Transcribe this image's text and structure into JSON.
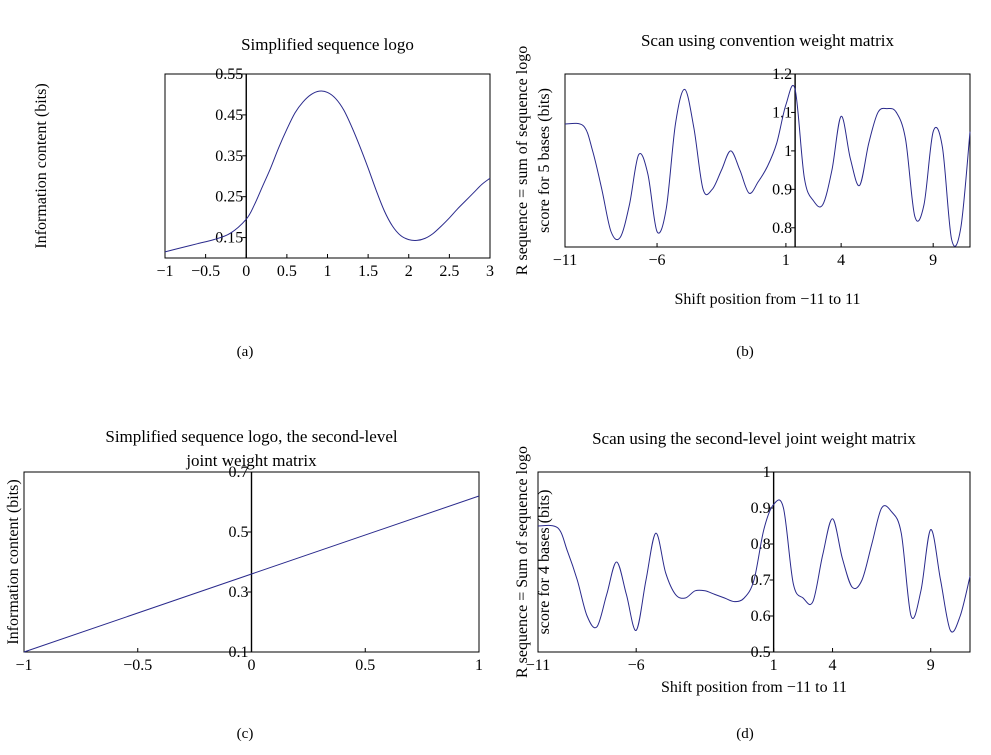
{
  "chart_data": [
    {
      "id": "a",
      "type": "line",
      "panel_label": "(a)",
      "title_lines": [
        "Simplified sequence logo"
      ],
      "xlabel": "",
      "ylabel_lines": [
        "Information content (bits)"
      ],
      "xlim": [
        -1,
        3
      ],
      "ylim": [
        0.1,
        0.55
      ],
      "xticks": [
        -1,
        -0.5,
        0,
        0.5,
        1,
        1.5,
        2,
        2.5,
        3
      ],
      "xtick_labels": [
        "−1",
        "−0.5",
        "0",
        "0.5",
        "1",
        "1.5",
        "2",
        "2.5",
        "3"
      ],
      "yticks": [
        0.15,
        0.25,
        0.35,
        0.45,
        0.55
      ],
      "ytick_labels": [
        "0.15",
        "0.25",
        "0.35",
        "0.45",
        "0.55"
      ],
      "yaxis_at_x": 0,
      "series": [
        {
          "x": [
            -1,
            -0.8,
            -0.6,
            -0.4,
            -0.2,
            0,
            0.1,
            0.2,
            0.3,
            0.4,
            0.5,
            0.6,
            0.7,
            0.8,
            0.9,
            1.0,
            1.1,
            1.2,
            1.3,
            1.4,
            1.5,
            1.6,
            1.7,
            1.8,
            1.9,
            2.0,
            2.1,
            2.2,
            2.3,
            2.4,
            2.5,
            2.6,
            2.7,
            2.8,
            2.9,
            3.0
          ],
          "y": [
            0.115,
            0.125,
            0.135,
            0.145,
            0.16,
            0.195,
            0.23,
            0.275,
            0.32,
            0.37,
            0.415,
            0.455,
            0.482,
            0.5,
            0.508,
            0.505,
            0.49,
            0.462,
            0.42,
            0.372,
            0.32,
            0.265,
            0.215,
            0.178,
            0.155,
            0.145,
            0.143,
            0.148,
            0.16,
            0.178,
            0.198,
            0.22,
            0.24,
            0.26,
            0.28,
            0.295
          ]
        }
      ]
    },
    {
      "id": "b",
      "type": "line",
      "panel_label": "(b)",
      "title_lines": [
        "Scan using convention weight matrix"
      ],
      "xlabel": "Shift position from −11 to 11",
      "ylabel_lines": [
        "R sequence = sum of sequence logo",
        "score for 5 bases (bits)"
      ],
      "xlim": [
        -11,
        11
      ],
      "ylim": [
        0.75,
        1.2
      ],
      "xticks": [
        -11,
        -6,
        1,
        4,
        9
      ],
      "xtick_labels": [
        "−11",
        "−6",
        "1",
        "4",
        "9"
      ],
      "yticks": [
        0.8,
        0.9,
        1.0,
        1.1,
        1.2
      ],
      "ytick_labels": [
        "0.8",
        "0.9",
        "1",
        "1.1",
        "1.2"
      ],
      "yaxis_at_x": 1.5,
      "series": [
        {
          "x": [
            -11,
            -10,
            -9.5,
            -9,
            -8.5,
            -8,
            -7.5,
            -7,
            -6.5,
            -6,
            -5.5,
            -5,
            -4.5,
            -4,
            -3.5,
            -3,
            -2.5,
            -2,
            -1.5,
            -1,
            -0.5,
            0,
            0.5,
            1,
            1.5,
            2,
            2.5,
            3,
            3.5,
            4,
            4.5,
            5,
            5.5,
            6,
            6.5,
            7,
            7.5,
            8,
            8.5,
            9,
            9.5,
            10,
            10.5,
            11
          ],
          "y": [
            1.07,
            1.065,
            1.0,
            0.9,
            0.79,
            0.775,
            0.86,
            0.99,
            0.94,
            0.79,
            0.85,
            1.07,
            1.16,
            1.06,
            0.9,
            0.9,
            0.95,
            1.0,
            0.95,
            0.89,
            0.92,
            0.96,
            1.02,
            1.12,
            1.16,
            0.93,
            0.87,
            0.86,
            0.95,
            1.09,
            0.98,
            0.91,
            1.02,
            1.1,
            1.11,
            1.1,
            1.03,
            0.83,
            0.86,
            1.05,
            1.01,
            0.77,
            0.8,
            1.05
          ]
        }
      ]
    },
    {
      "id": "c",
      "type": "line",
      "panel_label": "(c)",
      "title_lines": [
        "Simplified sequence logo, the second-level",
        "joint weight matrix"
      ],
      "xlabel": "",
      "ylabel_lines": [
        "Information content (bits)"
      ],
      "xlim": [
        -1,
        1
      ],
      "ylim": [
        0.1,
        0.7
      ],
      "xticks": [
        -1,
        -0.5,
        0,
        0.5,
        1
      ],
      "xtick_labels": [
        "−1",
        "−0.5",
        "0",
        "0.5",
        "1"
      ],
      "yticks": [
        0.1,
        0.3,
        0.5,
        0.7
      ],
      "ytick_labels": [
        "0.1",
        "0.3",
        "0.5",
        "0.7"
      ],
      "yaxis_at_x": 0,
      "series": [
        {
          "x": [
            -1,
            1
          ],
          "y": [
            0.1,
            0.62
          ]
        }
      ]
    },
    {
      "id": "d",
      "type": "line",
      "panel_label": "(d)",
      "title_lines": [
        "Scan using the second-level joint weight matrix"
      ],
      "xlabel": "Shift position from −11 to 11",
      "ylabel_lines": [
        "R sequence = Sum of sequence logo",
        "score for 4 bases (bits)"
      ],
      "xlim": [
        -11,
        11
      ],
      "ylim": [
        0.5,
        1.0
      ],
      "xticks": [
        -11,
        -6,
        1,
        4,
        9
      ],
      "xtick_labels": [
        "−11",
        "−6",
        "1",
        "4",
        "9"
      ],
      "yticks": [
        0.5,
        0.6,
        0.7,
        0.8,
        0.9,
        1.0
      ],
      "ytick_labels": [
        "0.5",
        "0.6",
        "0.7",
        "0.8",
        "0.9",
        "1"
      ],
      "yaxis_at_x": 1,
      "series": [
        {
          "x": [
            -11,
            -10,
            -9.5,
            -9,
            -8.5,
            -8,
            -7.5,
            -7,
            -6.5,
            -6,
            -5.5,
            -5,
            -4.5,
            -4,
            -3.5,
            -3,
            -2.5,
            -2,
            -1.5,
            -1,
            -0.5,
            0,
            0.5,
            1,
            1.5,
            2,
            2.5,
            3,
            3.5,
            4,
            4.5,
            5,
            5.5,
            6,
            6.5,
            7,
            7.5,
            8,
            8.5,
            9,
            9.5,
            10,
            10.5,
            11
          ],
          "y": [
            0.85,
            0.845,
            0.78,
            0.7,
            0.6,
            0.57,
            0.66,
            0.75,
            0.66,
            0.56,
            0.7,
            0.83,
            0.72,
            0.66,
            0.65,
            0.67,
            0.67,
            0.66,
            0.65,
            0.64,
            0.65,
            0.7,
            0.84,
            0.91,
            0.9,
            0.69,
            0.65,
            0.64,
            0.77,
            0.87,
            0.76,
            0.68,
            0.7,
            0.8,
            0.9,
            0.89,
            0.83,
            0.6,
            0.67,
            0.84,
            0.7,
            0.56,
            0.6,
            0.71
          ]
        }
      ]
    }
  ]
}
